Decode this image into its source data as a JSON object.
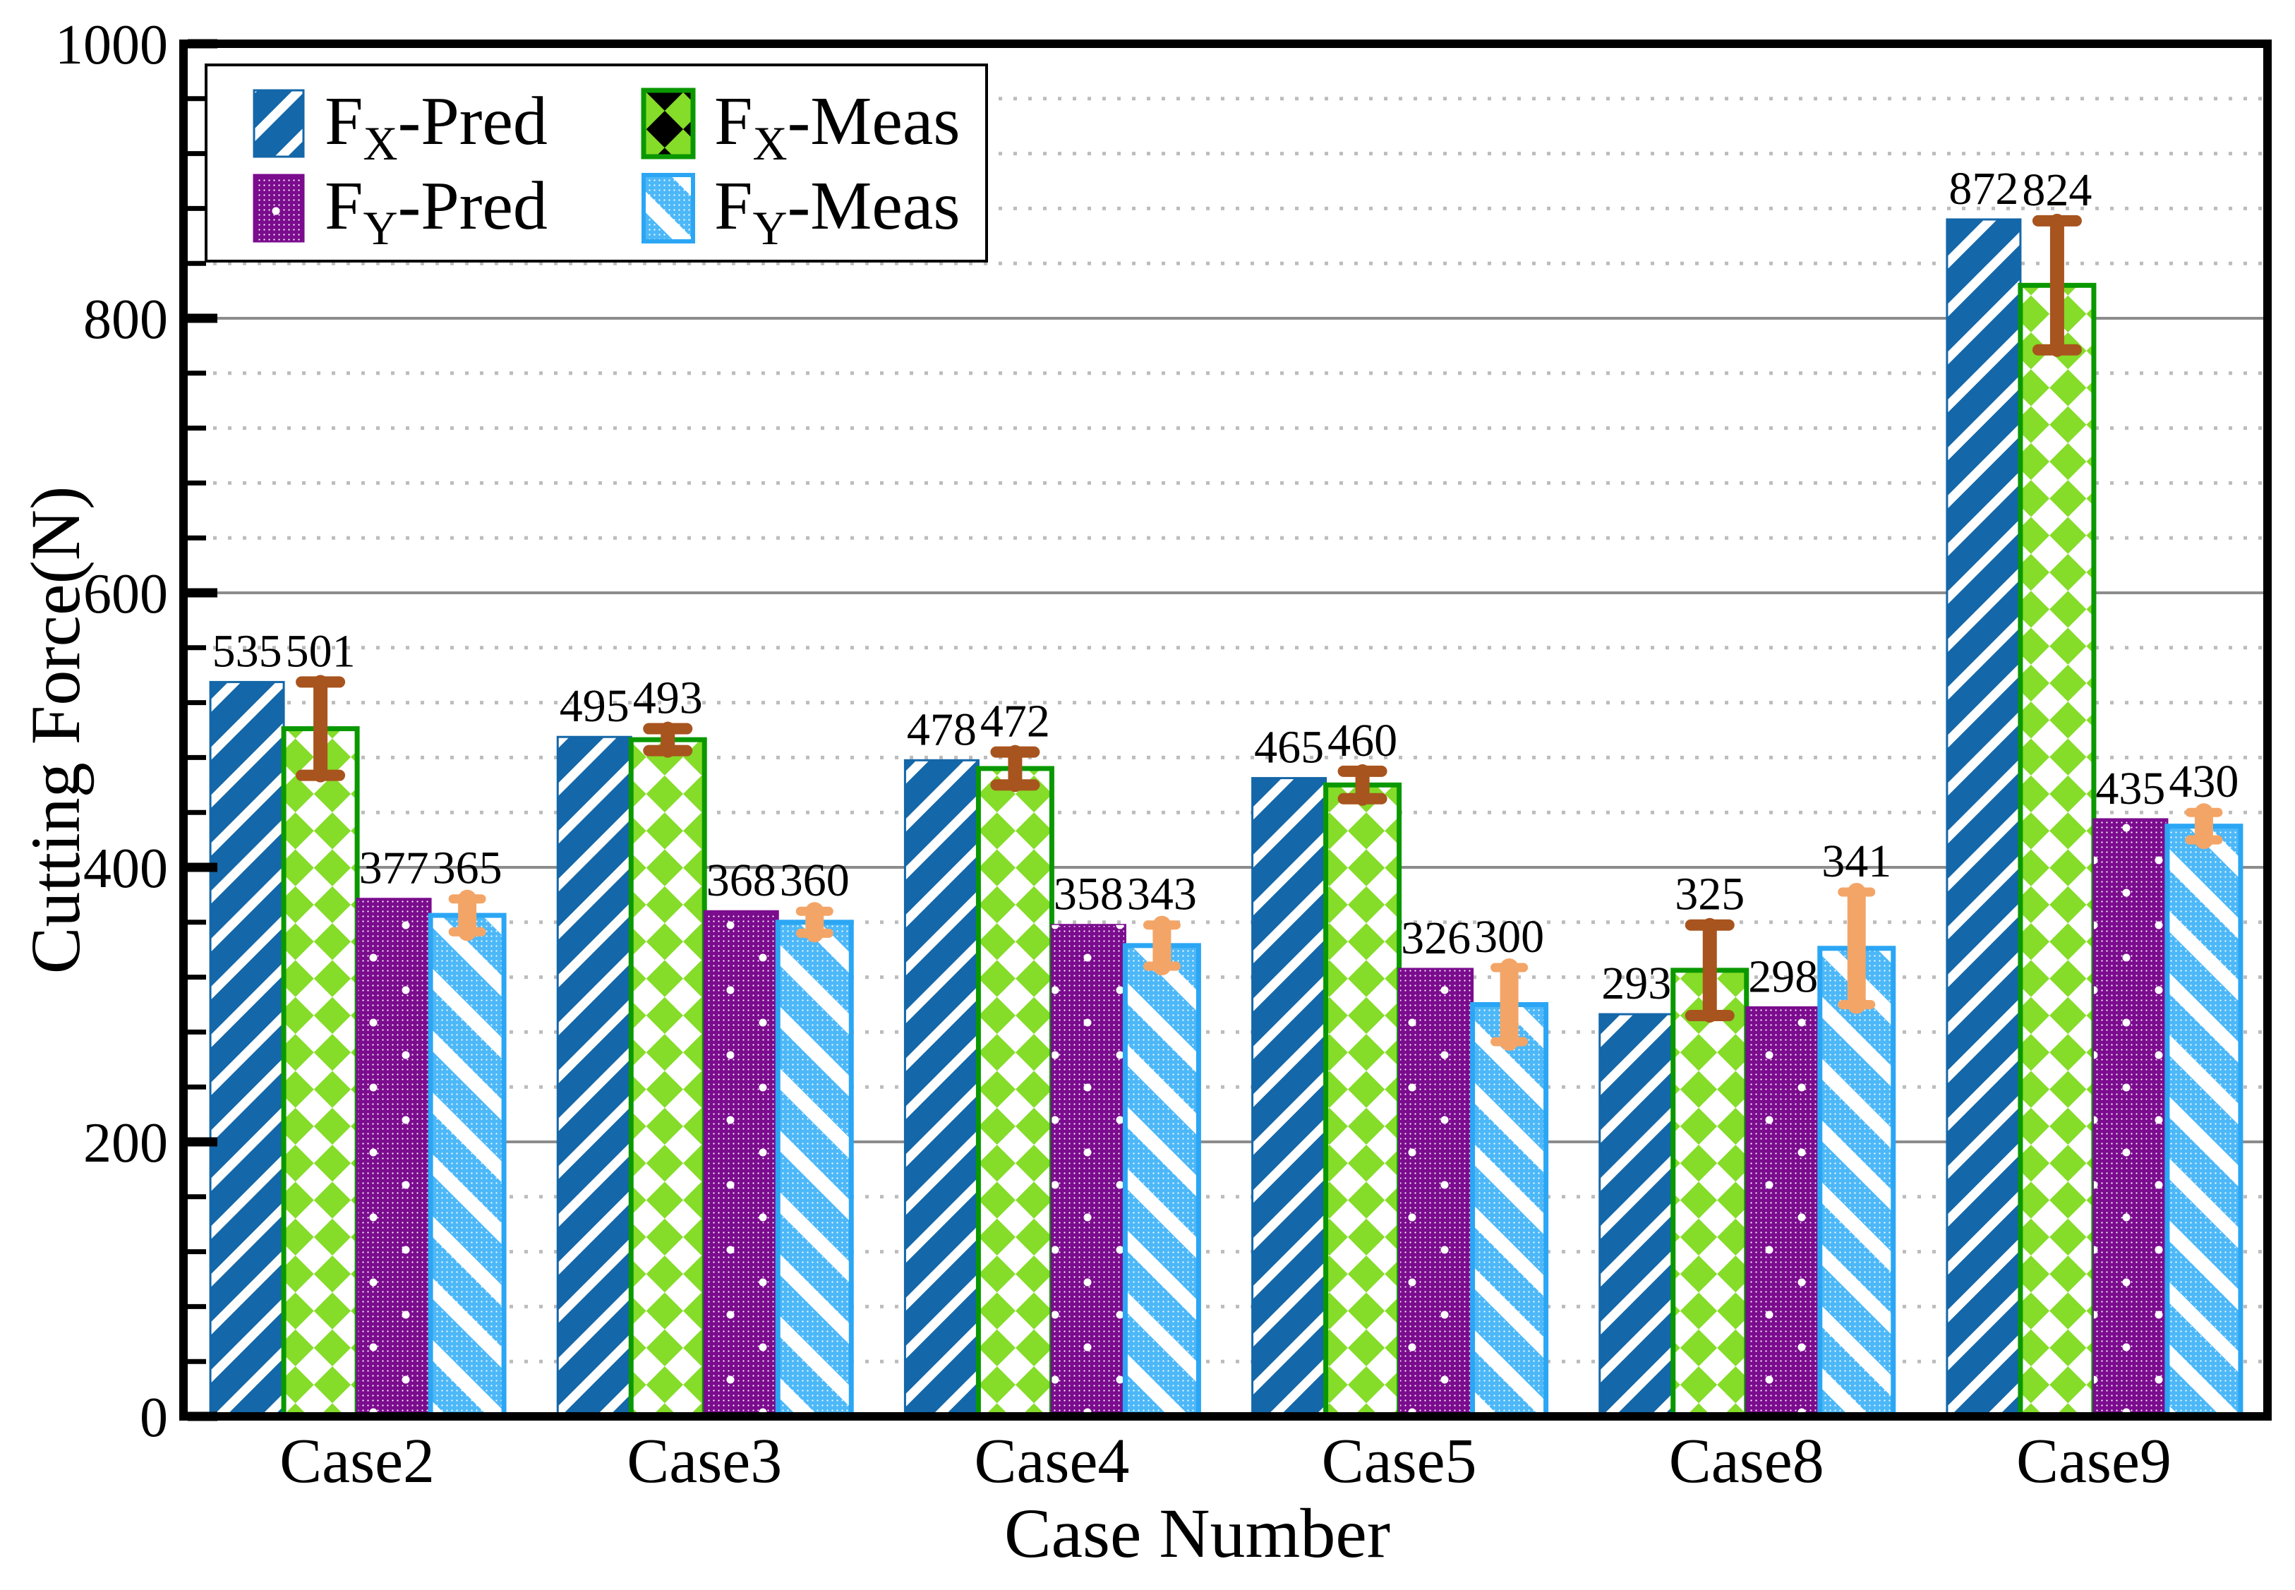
{
  "figure": {
    "background": "#ffffff",
    "spine_color": "#000000",
    "grid_major_color": "#8c8c8c",
    "grid_minor_color": "#bcbcbc"
  },
  "chart_data": {
    "type": "bar",
    "title": "",
    "xlabel": "Case Number",
    "ylabel": "Cutting Force(N)",
    "ylim": [
      0,
      1000
    ],
    "ytick_labels": [
      "0",
      "200",
      "400",
      "600",
      "800",
      "1000"
    ],
    "ytick_major_step": 200,
    "ytick_minor_step": 40,
    "grid": {
      "major": "solid-gray",
      "minor": "dotted-gray"
    },
    "legend_position": "upper-left",
    "legend_columns": 2,
    "categories": [
      "Case2",
      "Case3",
      "Case4",
      "Case5",
      "Case8",
      "Case9"
    ],
    "series": [
      {
        "id": "fx_pred",
        "name": "FX-Pred",
        "label_parts": [
          {
            "t": "F"
          },
          {
            "t": "X",
            "sub": true
          },
          {
            "t": "-Pred"
          }
        ],
        "pattern": "diagonal-hatch-up",
        "color": "#1467a8",
        "edge_color": "#1467a8",
        "values": [
          535,
          495,
          478,
          465,
          293,
          872
        ]
      },
      {
        "id": "fx_meas",
        "name": "FX-Meas",
        "label_parts": [
          {
            "t": "F"
          },
          {
            "t": "X",
            "sub": true
          },
          {
            "t": "-Meas"
          }
        ],
        "pattern": "diamond-checker",
        "color": "#85dc29",
        "edge_color": "#0a9800",
        "values": [
          501,
          493,
          472,
          460,
          325,
          824
        ],
        "errors": [
          34,
          8,
          12,
          10,
          33,
          47
        ],
        "error_color": "#a8541e"
      },
      {
        "id": "fy_pred",
        "name": "FY-Pred",
        "label_parts": [
          {
            "t": "F"
          },
          {
            "t": "Y",
            "sub": true
          },
          {
            "t": "-Pred"
          }
        ],
        "pattern": "fine-dots",
        "color": "#7b0c8e",
        "edge_color": "#7b0c8e",
        "values": [
          377,
          368,
          358,
          326,
          298,
          435
        ]
      },
      {
        "id": "fy_meas",
        "name": "FY-Meas",
        "label_parts": [
          {
            "t": "F"
          },
          {
            "t": "Y",
            "sub": true
          },
          {
            "t": "-Meas"
          }
        ],
        "pattern": "diagonal-hatch-down-dotted",
        "color": "#4db8f8",
        "edge_color": "#2ba6f4",
        "values": [
          365,
          360,
          343,
          300,
          341,
          430
        ],
        "errors": [
          12,
          8,
          15,
          27,
          41,
          10
        ],
        "error_color": "#f3a567"
      }
    ]
  }
}
